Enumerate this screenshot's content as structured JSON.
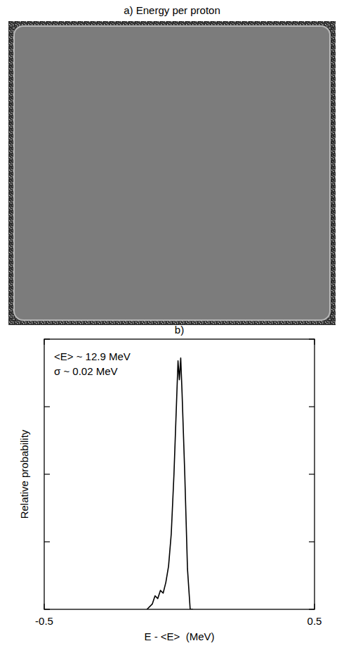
{
  "image_panel": {
    "title": "a) Energy per proton"
  },
  "chart_data": {
    "type": "line",
    "title": "b)",
    "x_label": "E - <E>  (MeV)",
    "y_label": "Relative probability",
    "annotations": [
      "<E> ~ 12.9 MeV",
      "σ ~ 0.02 MeV"
    ],
    "x": [
      -0.12,
      -0.1,
      -0.09,
      -0.08,
      -0.07,
      -0.06,
      -0.05,
      -0.04,
      -0.03,
      -0.02,
      -0.01,
      -0.005,
      0,
      0.005,
      0.01,
      0.02,
      0.03,
      0.04,
      0.05
    ],
    "values": [
      0,
      0.02,
      0.05,
      0.04,
      0.07,
      0.06,
      0.1,
      0.16,
      0.28,
      0.5,
      0.78,
      0.92,
      0.85,
      0.93,
      0.8,
      0.5,
      0.15,
      0,
      0
    ],
    "color": "#000000",
    "xlim": [
      -0.5,
      0.5
    ],
    "xticks": [
      -0.5,
      0.5
    ],
    "ylim": [
      0,
      1
    ],
    "yticks": [
      0,
      0.25,
      0.5,
      0.75,
      1
    ],
    "tick_labels": "x",
    "grid": false
  }
}
